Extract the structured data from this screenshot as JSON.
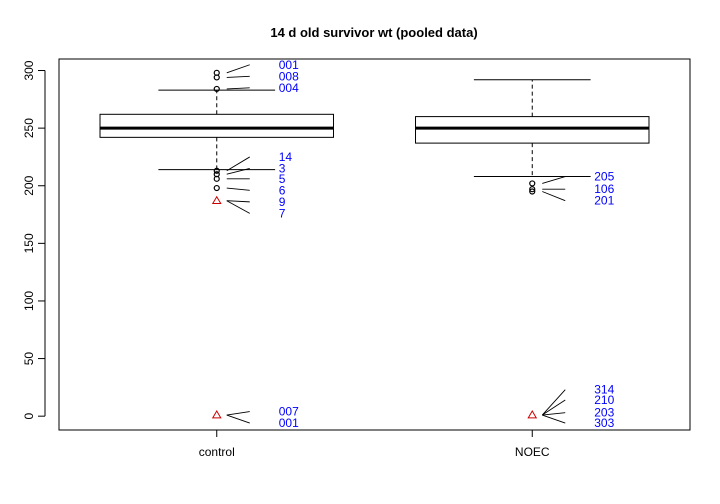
{
  "chart_data": {
    "type": "boxplot",
    "title": "14 d old survivor wt (pooled data)",
    "xlabel": "",
    "ylabel": "",
    "ylim": [
      -12,
      310
    ],
    "yticks": [
      0,
      50,
      100,
      150,
      200,
      250,
      300
    ],
    "categories": [
      "control",
      "NOEC"
    ],
    "boxes": [
      {
        "name": "control",
        "whisker_low": 214,
        "q1": 242,
        "median": 250,
        "q3": 262,
        "whisker_high": 283,
        "outliers": [
          {
            "y": 298,
            "label": "001",
            "label_y": 305,
            "color": "#000000",
            "shape": "circle"
          },
          {
            "y": 294,
            "label": "008",
            "label_y": 295,
            "color": "#000000",
            "shape": "circle"
          },
          {
            "y": 284,
            "label": "004",
            "label_y": 285,
            "color": "#000000",
            "shape": "circle"
          },
          {
            "y": 213,
            "label": "14",
            "label_y": 225,
            "color": "#000000",
            "shape": "circle"
          },
          {
            "y": 210,
            "label": "3",
            "label_y": 215,
            "color": "#000000",
            "shape": "circle"
          },
          {
            "y": 206,
            "label": "5",
            "label_y": 206,
            "color": "#000000",
            "shape": "circle"
          },
          {
            "y": 198,
            "label": "6",
            "label_y": 196,
            "color": "#000000",
            "shape": "circle"
          },
          {
            "y": 187,
            "label": "9",
            "label_y": 186,
            "color": "#cc0000",
            "shape": "triangle"
          },
          {
            "y": 187,
            "label": "7",
            "label_y": 176,
            "color": "#cc0000",
            "shape": "none"
          },
          {
            "y": 1,
            "label": "007",
            "label_y": 4,
            "color": "#cc0000",
            "shape": "triangle"
          },
          {
            "y": 1,
            "label": "001",
            "label_y": -6,
            "color": "#cc0000",
            "shape": "none"
          }
        ]
      },
      {
        "name": "NOEC",
        "whisker_low": 208,
        "q1": 237,
        "median": 250,
        "q3": 260,
        "whisker_high": 292,
        "outliers": [
          {
            "y": 202,
            "label": "205",
            "label_y": 208,
            "color": "#000000",
            "shape": "circle"
          },
          {
            "y": 197,
            "label": "106",
            "label_y": 197,
            "color": "#000000",
            "shape": "circle"
          },
          {
            "y": 195,
            "label": "201",
            "label_y": 187,
            "color": "#000000",
            "shape": "circle"
          },
          {
            "y": 1,
            "label": "314",
            "label_y": 23,
            "color": "#cc0000",
            "shape": "triangle"
          },
          {
            "y": 1,
            "label": "210",
            "label_y": 14,
            "color": "#cc0000",
            "shape": "none"
          },
          {
            "y": 1,
            "label": "203",
            "label_y": 3,
            "color": "#cc0000",
            "shape": "none"
          },
          {
            "y": 1,
            "label": "303",
            "label_y": -6,
            "color": "#cc0000",
            "shape": "none"
          }
        ]
      }
    ],
    "grid": false,
    "legend": "none"
  }
}
